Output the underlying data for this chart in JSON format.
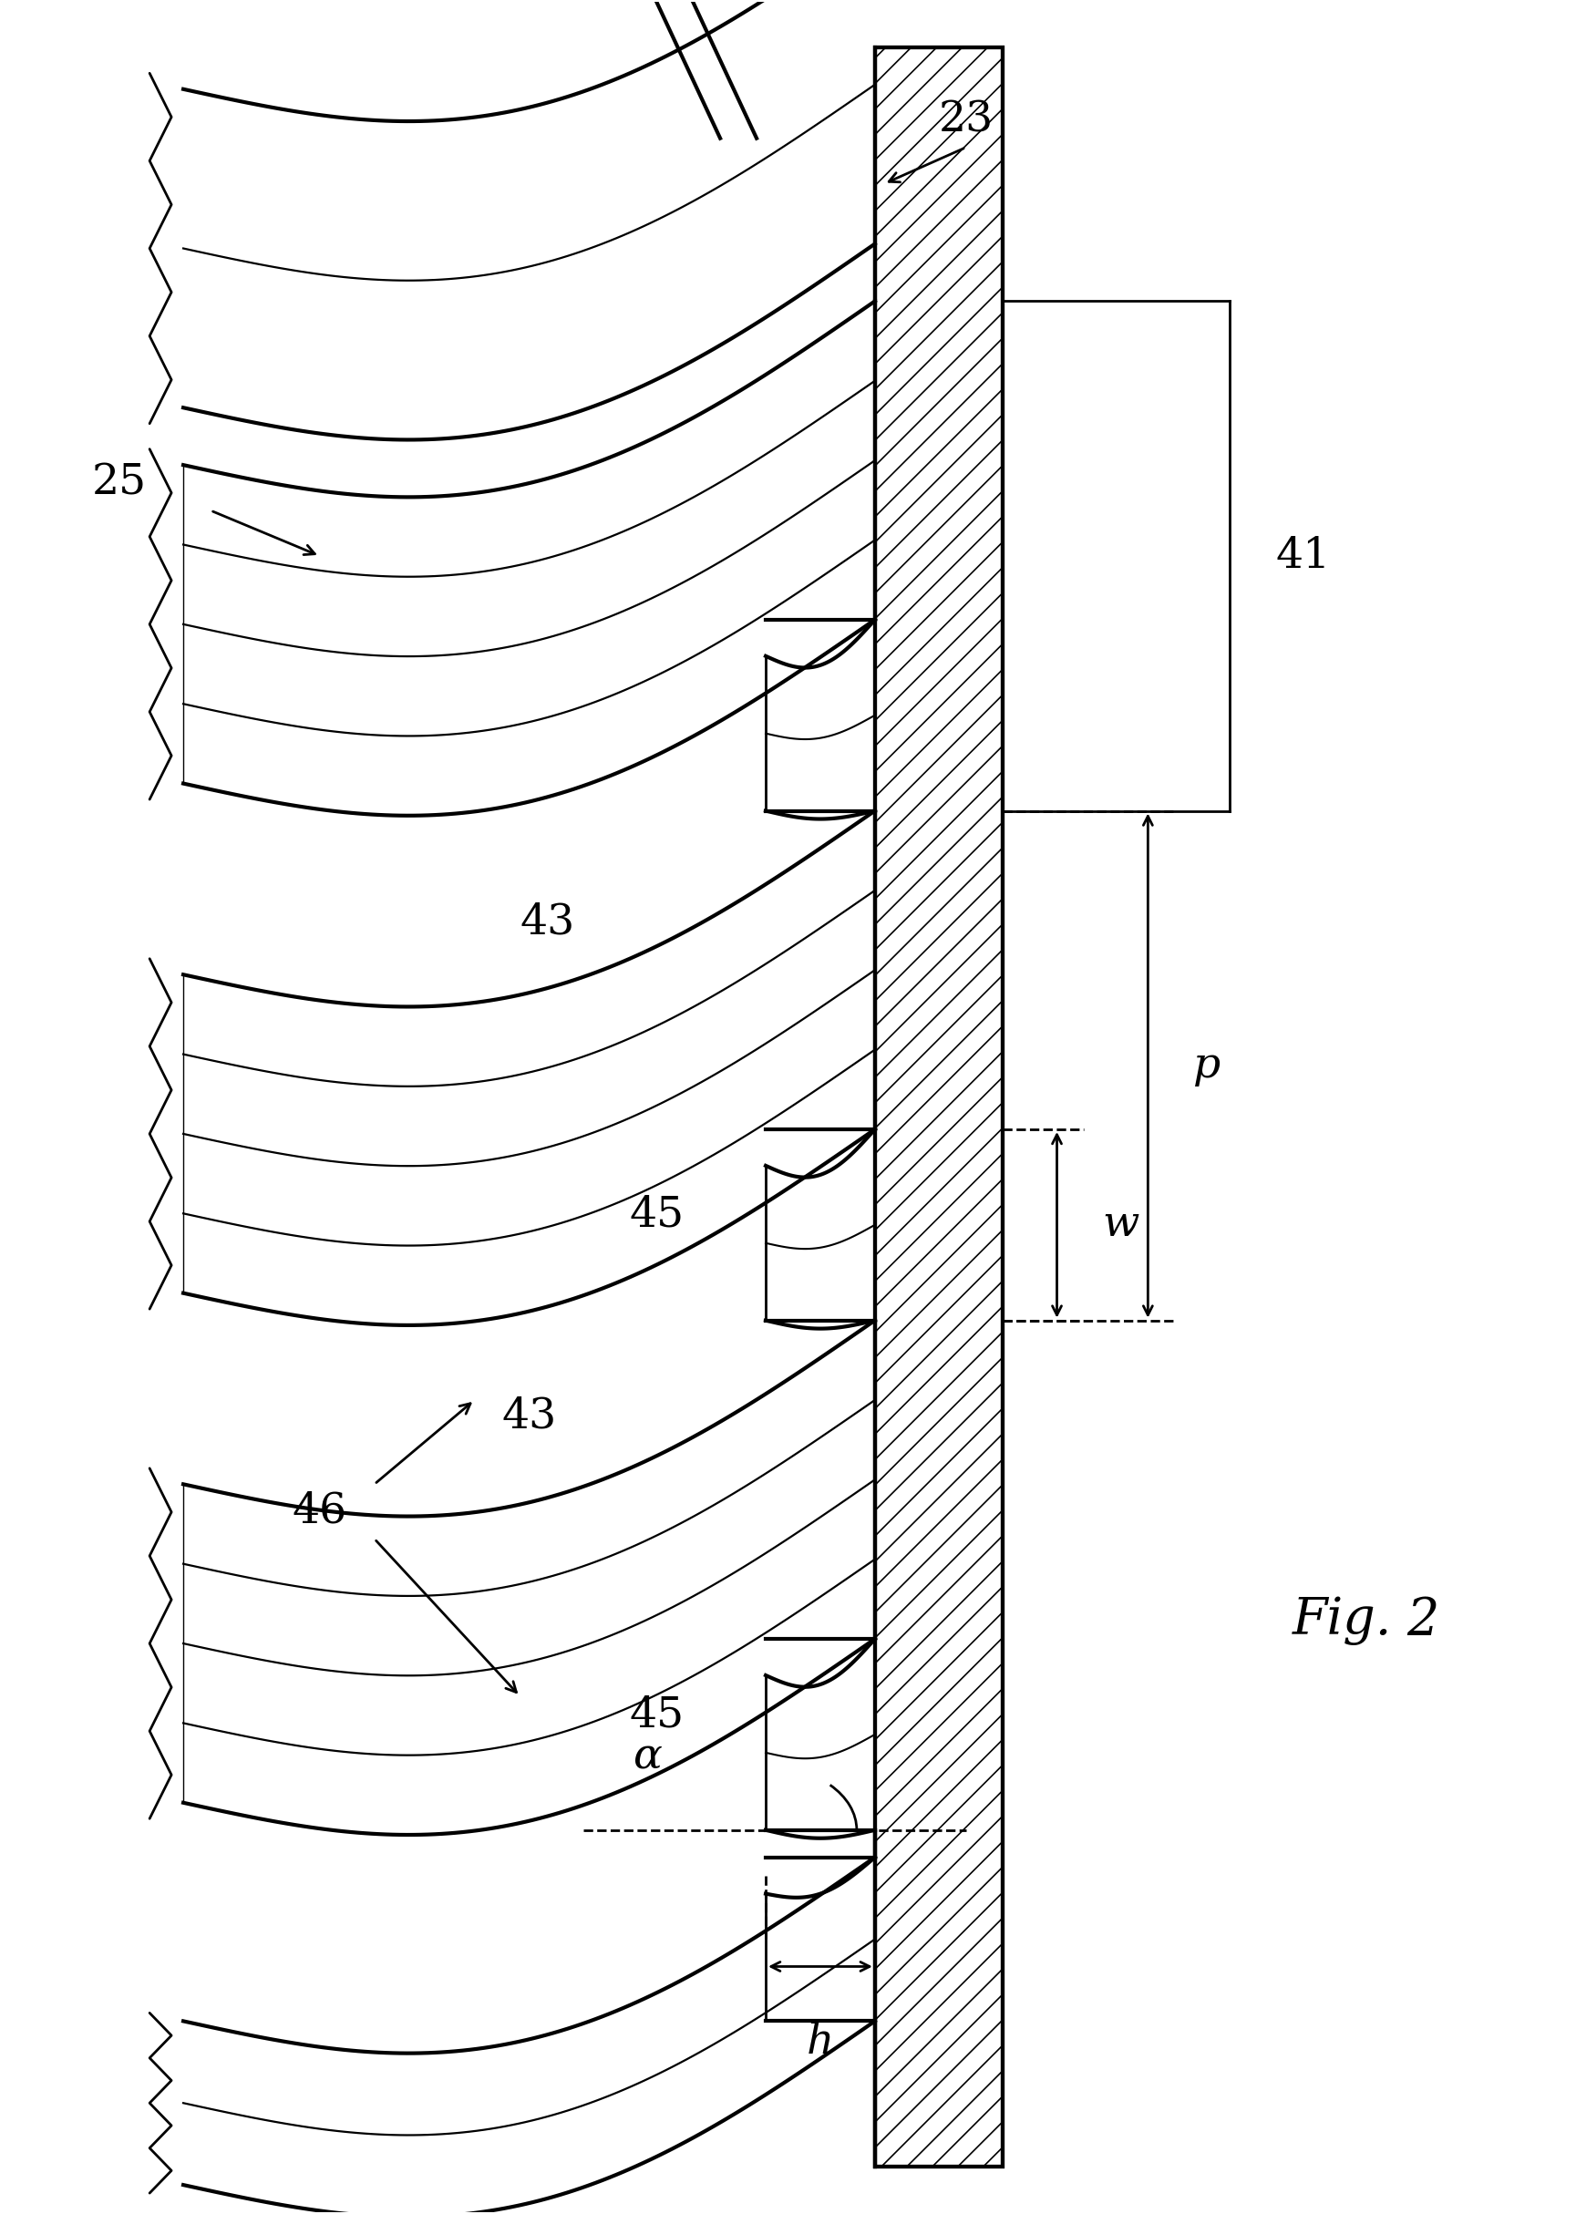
{
  "fig_label": "Fig. 2",
  "label_25": "25",
  "label_23": "23",
  "label_41": "41",
  "label_43": "43",
  "label_45": "45",
  "label_46": "46",
  "label_alpha": "α",
  "label_w": "w",
  "label_p": "p",
  "label_h": "h",
  "bg_color": "#ffffff",
  "line_color": "#000000",
  "figure_size": [
    17.29,
    24.29
  ]
}
